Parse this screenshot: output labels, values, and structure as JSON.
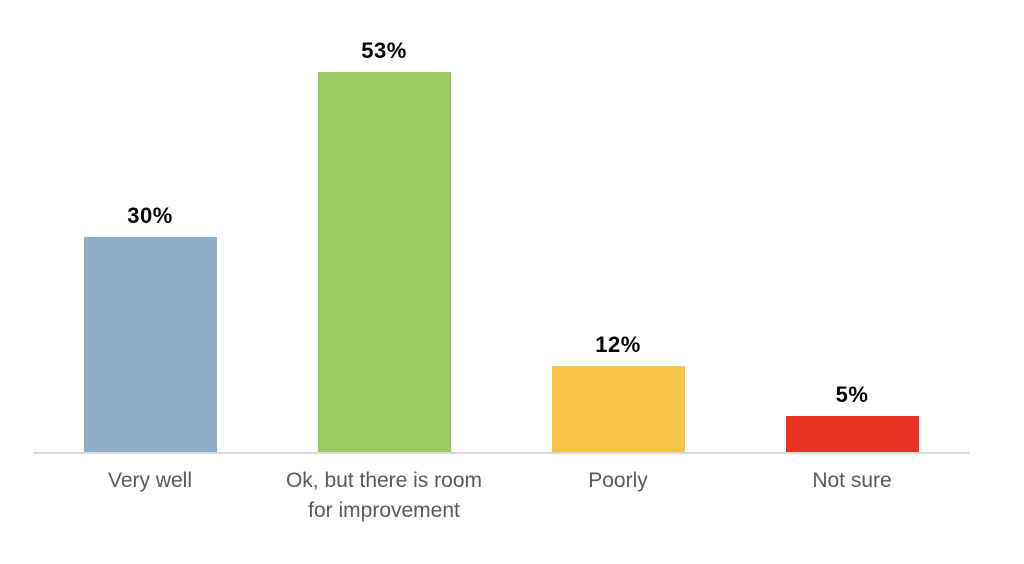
{
  "chart_data": {
    "type": "bar",
    "title": "",
    "xlabel": "",
    "ylabel": "",
    "categories": [
      "Very well",
      "Ok, but there is room for improvement",
      "Poorly",
      "Not sure"
    ],
    "values": [
      30,
      53,
      12,
      5
    ],
    "value_labels": [
      "30%",
      "53%",
      "12%",
      "5%"
    ],
    "bar_colors": [
      "#8DADC9",
      "#9BCA62",
      "#F6C344",
      "#E93323"
    ],
    "ylim": [
      0,
      60
    ],
    "grid": false,
    "legend": false,
    "y_axis_visible": false,
    "baseline_color": "#D9D9D9",
    "value_label_color": "#000000",
    "category_label_color": "#595959",
    "background_color": "#FFFFFF"
  }
}
